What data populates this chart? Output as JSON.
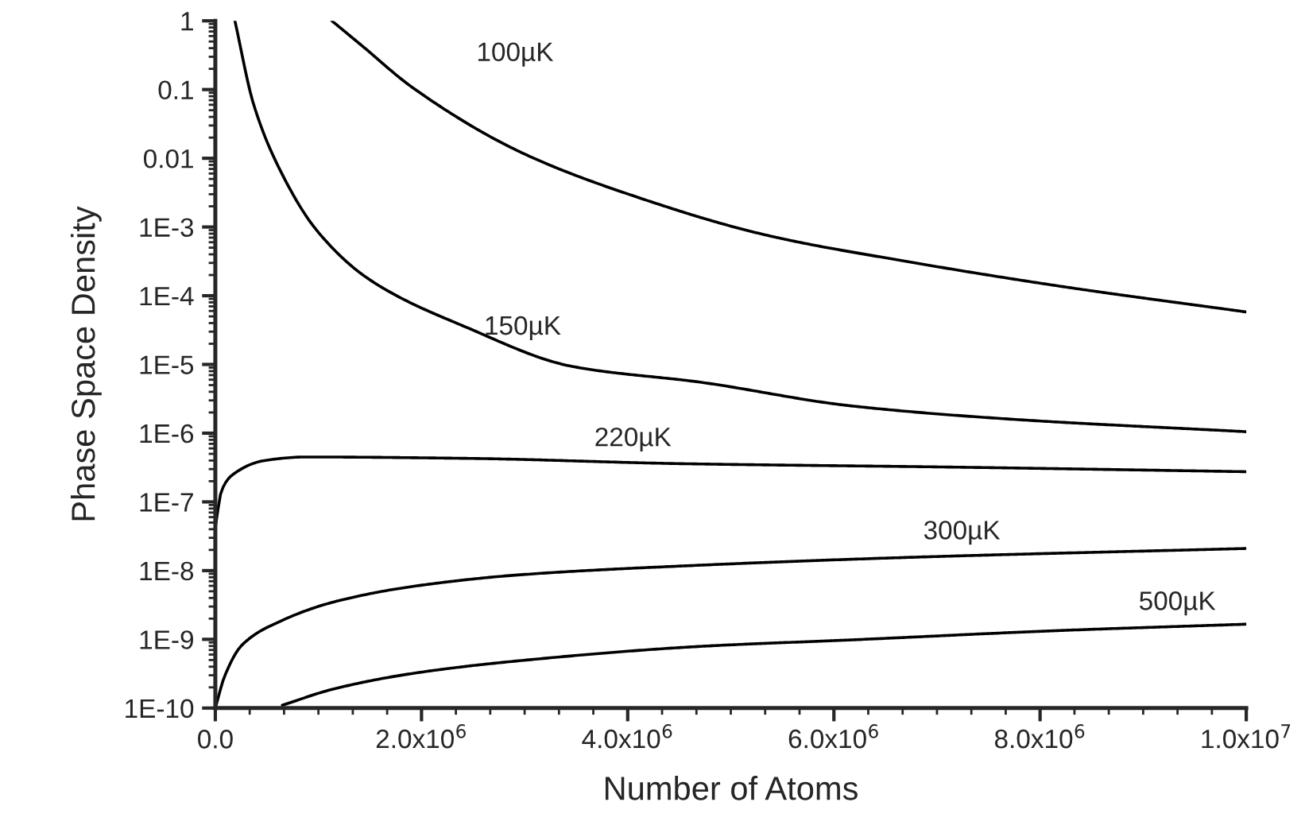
{
  "chart_data": {
    "type": "line",
    "xlabel": "Number of Atoms",
    "ylabel": "Phase Space Density",
    "log": "y",
    "xlim": [
      0,
      10000000
    ],
    "ylim": [
      1e-10,
      1
    ],
    "xticks": [
      {
        "value": 0,
        "label": "0.0"
      },
      {
        "value": 2000000,
        "label": "2.0x10$^{6}$"
      },
      {
        "value": 4000000,
        "label": "4.0x10$^{6}$"
      },
      {
        "value": 6000000,
        "label": "6.0x10$^{6}$"
      },
      {
        "value": 8000000,
        "label": "8.0x10$^{6}$"
      },
      {
        "value": 10000000,
        "label": "1.0x10$^{7}$"
      }
    ],
    "yticks": [
      {
        "value": 1,
        "label": "1"
      },
      {
        "value": 0.1,
        "label": "0.1"
      },
      {
        "value": 0.01,
        "label": "0.01"
      },
      {
        "value": 0.001,
        "label": "1E-3"
      },
      {
        "value": 0.0001,
        "label": "1E-4"
      },
      {
        "value": 1e-05,
        "label": "1E-5"
      },
      {
        "value": 1e-06,
        "label": "1E-6"
      },
      {
        "value": 1e-07,
        "label": "1E-7"
      },
      {
        "value": 1e-08,
        "label": "1E-8"
      },
      {
        "value": 1e-09,
        "label": "1E-9"
      },
      {
        "value": 1e-10,
        "label": "1E-10"
      }
    ],
    "grid": false,
    "legend": false,
    "marker": "none",
    "line_style": "solid",
    "series": [
      {
        "name": "100µK",
        "color": "#000000",
        "x": [
          1130000,
          1410000,
          1920000,
          2960000,
          3980000,
          5380000,
          6680000,
          8230000,
          10000000
        ],
        "values": [
          1,
          0.45,
          0.105,
          0.0123,
          0.0031,
          0.00074,
          0.00032,
          0.000135,
          5.8e-05
        ]
      },
      {
        "name": "150µK",
        "color": "#000000",
        "x": [
          190000,
          370000,
          640000,
          990000,
          1500000,
          2430000,
          3470000,
          4710000,
          6160000,
          7710000,
          10000000
        ],
        "values": [
          1,
          0.062,
          0.0062,
          0.00087,
          0.00017,
          3.5e-05,
          9.3e-06,
          5.5e-06,
          2.5e-06,
          1.6e-06,
          1.05e-06
        ]
      },
      {
        "name": "220µK",
        "color": "#000000",
        "x": [
          0,
          60000,
          170000,
          480000,
          880000,
          2430000,
          4510000,
          7190000,
          10000000
        ],
        "values": [
          4.3e-08,
          1.45e-07,
          2.5e-07,
          4e-07,
          4.5e-07,
          4.3e-07,
          3.6e-07,
          3.2e-07,
          2.75e-07
        ]
      },
      {
        "name": "300µK",
        "color": "#000000",
        "x": [
          0,
          90000,
          260000,
          640000,
          1150000,
          1920000,
          2960000,
          4710000,
          6680000,
          10000000
        ],
        "values": [
          1e-10,
          2.9e-10,
          8.3e-10,
          1.86e-09,
          3.5e-09,
          5.9e-09,
          8.7e-09,
          1.2e-08,
          1.55e-08,
          2.1e-08
        ]
      },
      {
        "name": "500µK",
        "color": "#000000",
        "x": [
          650000,
          1150000,
          1920000,
          2960000,
          4710000,
          6160000,
          8230000,
          10000000
        ],
        "values": [
          1.1e-10,
          1.9e-10,
          3.2e-10,
          4.9e-10,
          7.9e-10,
          9.8e-10,
          1.35e-09,
          1.66e-09
        ]
      }
    ]
  }
}
